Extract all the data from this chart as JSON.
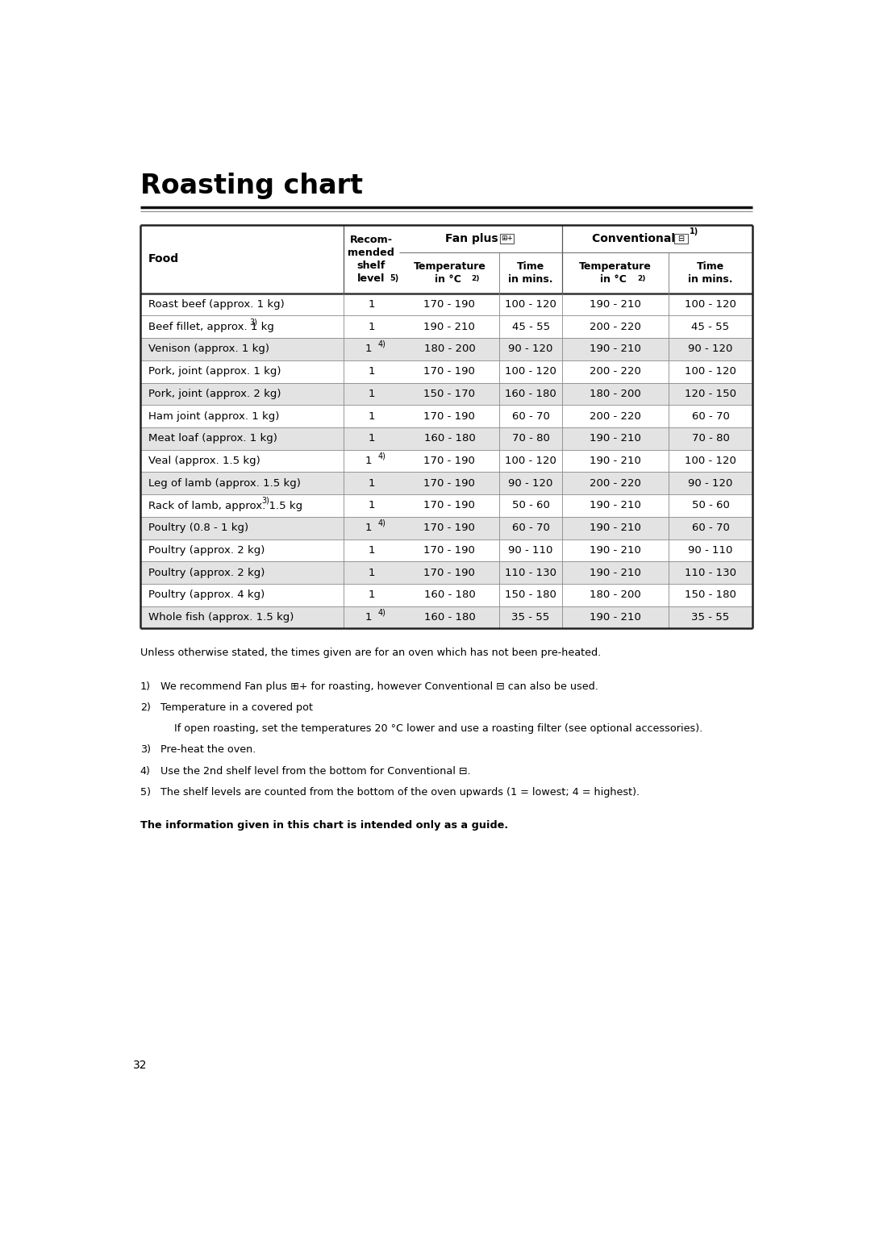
{
  "title": "Roasting chart",
  "rows": [
    [
      "Roast beef (approx. 1 kg)",
      "1",
      "170 - 190",
      "100 - 120",
      "190 - 210",
      "100 - 120",
      false
    ],
    [
      "Beef fillet, approx. 1 kg",
      "1",
      "190 - 210",
      "45 - 55",
      "200 - 220",
      "45 - 55",
      false,
      "3)"
    ],
    [
      "Venison (approx. 1 kg)",
      "1",
      "180 - 200",
      "90 - 120",
      "190 - 210",
      "90 - 120",
      true,
      "",
      "4)"
    ],
    [
      "Pork, joint (approx. 1 kg)",
      "1",
      "170 - 190",
      "100 - 120",
      "200 - 220",
      "100 - 120",
      false
    ],
    [
      "Pork, joint (approx. 2 kg)",
      "1",
      "150 - 170",
      "160 - 180",
      "180 - 200",
      "120 - 150",
      true
    ],
    [
      "Ham joint (approx. 1 kg)",
      "1",
      "170 - 190",
      "60 - 70",
      "200 - 220",
      "60 - 70",
      false
    ],
    [
      "Meat loaf (approx. 1 kg)",
      "1",
      "160 - 180",
      "70 - 80",
      "190 - 210",
      "70 - 80",
      true
    ],
    [
      "Veal (approx. 1.5 kg)",
      "1",
      "170 - 190",
      "100 - 120",
      "190 - 210",
      "100 - 120",
      false,
      "",
      "4)"
    ],
    [
      "Leg of lamb (approx. 1.5 kg)",
      "1",
      "170 - 190",
      "90 - 120",
      "200 - 220",
      "90 - 120",
      true
    ],
    [
      "Rack of lamb, approx. 1.5 kg",
      "1",
      "170 - 190",
      "50 - 60",
      "190 - 210",
      "50 - 60",
      false,
      "3)"
    ],
    [
      "Poultry (0.8 - 1 kg)",
      "1",
      "170 - 190",
      "60 - 70",
      "190 - 210",
      "60 - 70",
      true,
      "",
      "4)"
    ],
    [
      "Poultry (approx. 2 kg)",
      "1",
      "170 - 190",
      "90 - 110",
      "190 - 210",
      "90 - 110",
      false
    ],
    [
      "Poultry (approx. 2 kg)",
      "1",
      "170 - 190",
      "110 - 130",
      "190 - 210",
      "110 - 130",
      true
    ],
    [
      "Poultry (approx. 4 kg)",
      "1",
      "160 - 180",
      "150 - 180",
      "180 - 200",
      "150 - 180",
      false
    ],
    [
      "Whole fish (approx. 1.5 kg)",
      "1",
      "160 - 180",
      "35 - 55",
      "190 - 210",
      "35 - 55",
      true,
      "",
      "4)"
    ]
  ],
  "footnote_plain": "Unless otherwise stated, the times given are for an oven which has not been pre-heated.",
  "footnotes": [
    [
      "1)",
      "We recommend Fan plus ⊞+ for roasting, however Conventional ⊟ can also be used."
    ],
    [
      "2)",
      "Temperature in a covered pot"
    ],
    [
      "",
      "If open roasting, set the temperatures 20 °C lower and use a roasting filter (see optional accessories)."
    ],
    [
      "3)",
      "Pre-heat the oven."
    ],
    [
      "4)",
      "Use the 2nd shelf level from the bottom for Conventional ⊟."
    ],
    [
      "5)",
      "The shelf levels are counted from the bottom of the oven upwards (1 = lowest; 4 = highest)."
    ]
  ],
  "bold_note": "The information given in this chart is intended only as a guide.",
  "page_number": "32",
  "bg_color_shaded": "#e3e3e3",
  "bg_color_plain": "#ffffff"
}
